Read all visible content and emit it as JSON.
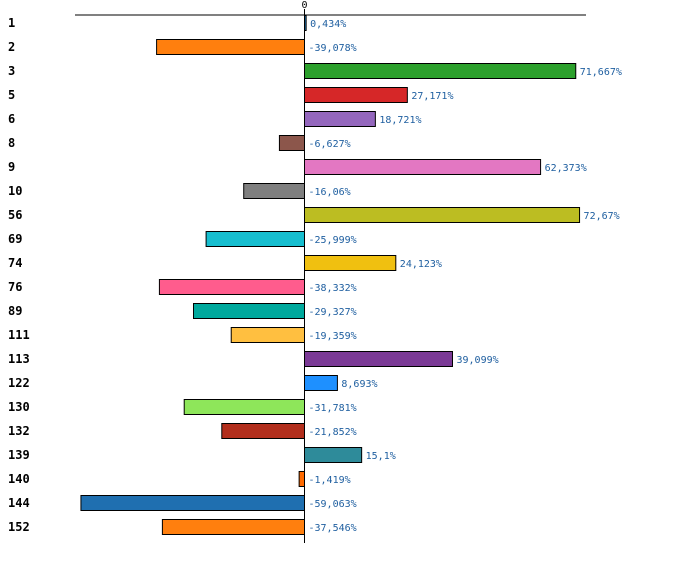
{
  "chart_data": {
    "type": "bar",
    "orientation": "horizontal",
    "title": "",
    "xlabel": "",
    "ylabel": "",
    "xlim": [
      -60,
      72.67
    ],
    "zero_tick_label": "0",
    "grid": false,
    "legend": "none",
    "categories": [
      "1",
      "2",
      "3",
      "5",
      "6",
      "8",
      "9",
      "10",
      "56",
      "69",
      "74",
      "76",
      "89",
      "111",
      "113",
      "122",
      "130",
      "132",
      "139",
      "140",
      "144",
      "152"
    ],
    "values": [
      0.434,
      -39.078,
      71.667,
      27.171,
      18.721,
      -6.627,
      62.373,
      -16.06,
      72.67,
      -25.999,
      24.123,
      -38.332,
      -29.327,
      -19.359,
      39.099,
      8.693,
      -31.781,
      -21.852,
      15.1,
      -1.419,
      -59.063,
      -37.546
    ],
    "value_labels": [
      "0,434%",
      "-39,078%",
      "71,667%",
      "27,171%",
      "18,721%",
      "-6,627%",
      "62,373%",
      "-16,06%",
      "72,67%",
      "-25,999%",
      "24,123%",
      "-38,332%",
      "-29,327%",
      "-19,359%",
      "39,099%",
      "8,693%",
      "-31,781%",
      "-21,852%",
      "15,1%",
      "-1,419%",
      "-59,063%",
      "-37,546%"
    ],
    "colors": [
      "#1f77b4",
      "#ff7f0e",
      "#2ca02c",
      "#d62728",
      "#9467bd",
      "#8c564b",
      "#e377c2",
      "#7f7f7f",
      "#bcbd22",
      "#17becf",
      "#f0c010",
      "#ff5c8d",
      "#00a99d",
      "#ffbf40",
      "#7b3a96",
      "#1e90ff",
      "#8ee65a",
      "#b22e1c",
      "#2e8b9a",
      "#ff6a00",
      "#1f6fb0",
      "#ff7f0e"
    ]
  }
}
